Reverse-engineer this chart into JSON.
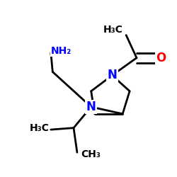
{
  "bg_color": "#ffffff",
  "atom_colors": {
    "N": "#0000ff",
    "O": "#ff0000",
    "C": "#000000"
  },
  "bond_color": "#000000",
  "bond_lw": 2.0,
  "font_size_atom": 12,
  "font_size_label": 10,
  "figsize": [
    2.5,
    2.5
  ],
  "dpi": 100,
  "xlim": [
    0.0,
    1.0
  ],
  "ylim": [
    0.05,
    0.95
  ]
}
